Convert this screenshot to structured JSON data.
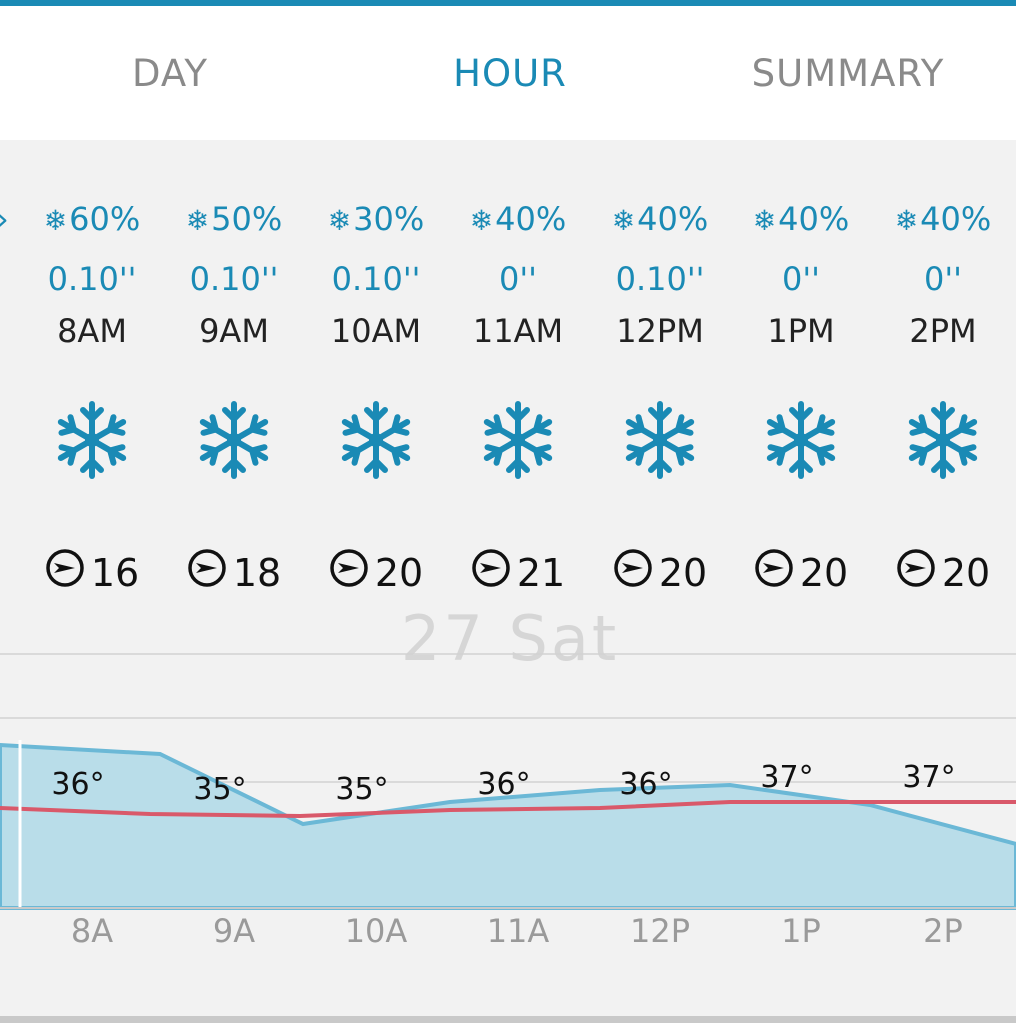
{
  "tabs": [
    {
      "label": "DAY",
      "active": false
    },
    {
      "label": "HOUR",
      "active": true
    },
    {
      "label": "SUMMARY",
      "active": false
    }
  ],
  "colors": {
    "accent": "#1a8ab5",
    "temp_line": "#d9596a",
    "area_fill": "#b9dde9",
    "area_stroke": "#6bb8d6"
  },
  "day_label": "27 Sat",
  "hours": [
    {
      "chance": "60%",
      "amount": "0.10''",
      "time": "8AM",
      "icon": "snowflake-icon",
      "wind_dir": "arrow-icon",
      "wind": "16",
      "temp": "36°",
      "axis": "8A"
    },
    {
      "chance": "50%",
      "amount": "0.10''",
      "time": "9AM",
      "icon": "snowflake-icon",
      "wind_dir": "arrow-icon",
      "wind": "18",
      "temp": "35°",
      "axis": "9A"
    },
    {
      "chance": "30%",
      "amount": "0.10''",
      "time": "10AM",
      "icon": "snowflake-icon",
      "wind_dir": "arrow-icon",
      "wind": "20",
      "temp": "35°",
      "axis": "10A"
    },
    {
      "chance": "40%",
      "amount": "0''",
      "time": "11AM",
      "icon": "snowflake-icon",
      "wind_dir": "arrow-icon",
      "wind": "21",
      "temp": "36°",
      "axis": "11A"
    },
    {
      "chance": "40%",
      "amount": "0.10''",
      "time": "12PM",
      "icon": "snowflake-icon",
      "wind_dir": "arrow-icon",
      "wind": "20",
      "temp": "36°",
      "axis": "12P"
    },
    {
      "chance": "40%",
      "amount": "0''",
      "time": "1PM",
      "icon": "snowflake-icon",
      "wind_dir": "arrow-icon",
      "wind": "20",
      "temp": "37°",
      "axis": "1P"
    },
    {
      "chance": "40%",
      "amount": "0''",
      "time": "2PM",
      "icon": "snowflake-icon",
      "wind_dir": "arrow-icon",
      "wind": "20",
      "temp": "37°",
      "axis": "2P"
    }
  ]
}
